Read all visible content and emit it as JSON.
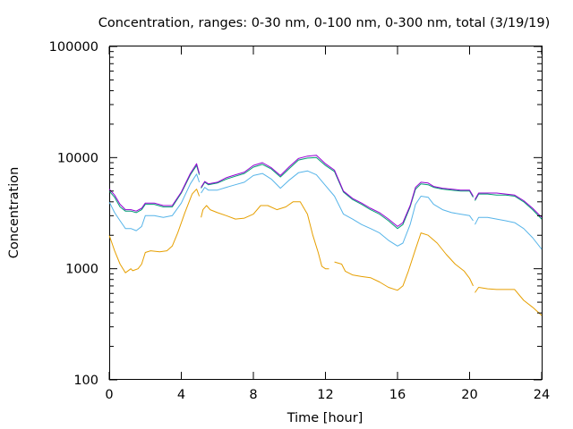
{
  "chart_data": {
    "type": "line",
    "title": "Concentration, ranges: 0-30 nm, 0-100 nm, 0-300 nm, total (3/19/19)",
    "xlabel": "Time [hour]",
    "ylabel": "Concentration",
    "xlim": [
      0,
      24
    ],
    "ylim": [
      100,
      100000
    ],
    "yscale": "log",
    "grid": false,
    "xticks": [
      0,
      4,
      8,
      12,
      16,
      20,
      24
    ],
    "xtick_labels": [
      "0",
      "4",
      "8",
      "12",
      "16",
      "20",
      "24"
    ],
    "yticks": [
      100,
      1000,
      10000,
      100000
    ],
    "ytick_labels": [
      "100",
      "1000",
      "10000",
      "100000"
    ],
    "series": [
      {
        "color": "#e69f00",
        "segments": [
          [
            [
              0,
              2000
            ],
            [
              0.3,
              1450
            ],
            [
              0.6,
              1100
            ],
            [
              0.9,
              920
            ],
            [
              1.2,
              1000
            ],
            [
              1.3,
              960
            ],
            [
              1.6,
              1000
            ],
            [
              1.8,
              1100
            ],
            [
              2.0,
              1400
            ],
            [
              2.3,
              1450
            ],
            [
              2.8,
              1420
            ],
            [
              3.2,
              1450
            ],
            [
              3.5,
              1600
            ],
            [
              3.8,
              2100
            ],
            [
              4.2,
              3200
            ],
            [
              4.6,
              4700
            ],
            [
              4.85,
              5200
            ],
            [
              5.0,
              4500
            ]
          ],
          [
            [
              5.1,
              2900
            ],
            [
              5.2,
              3400
            ],
            [
              5.4,
              3700
            ],
            [
              5.6,
              3400
            ],
            [
              6.0,
              3200
            ],
            [
              6.5,
              3000
            ],
            [
              7.0,
              2800
            ],
            [
              7.5,
              2850
            ],
            [
              8.0,
              3100
            ],
            [
              8.4,
              3700
            ],
            [
              8.8,
              3700
            ],
            [
              9.3,
              3400
            ],
            [
              9.8,
              3600
            ],
            [
              10.2,
              4000
            ],
            [
              10.6,
              4000
            ],
            [
              11.0,
              3100
            ],
            [
              11.3,
              2000
            ],
            [
              11.6,
              1400
            ],
            [
              11.8,
              1050
            ],
            [
              12.0,
              1000
            ],
            [
              12.2,
              1000
            ]
          ],
          [
            [
              12.5,
              1150
            ],
            [
              12.9,
              1100
            ],
            [
              13.1,
              950
            ],
            [
              13.5,
              880
            ],
            [
              14.0,
              850
            ],
            [
              14.5,
              830
            ],
            [
              15.0,
              760
            ],
            [
              15.5,
              680
            ],
            [
              16.0,
              640
            ],
            [
              16.3,
              700
            ],
            [
              16.6,
              950
            ],
            [
              17.0,
              1500
            ],
            [
              17.3,
              2100
            ],
            [
              17.7,
              2000
            ],
            [
              18.2,
              1700
            ],
            [
              18.7,
              1350
            ],
            [
              19.2,
              1100
            ],
            [
              19.7,
              950
            ],
            [
              20.0,
              820
            ],
            [
              20.2,
              700
            ]
          ],
          [
            [
              20.3,
              610
            ],
            [
              20.5,
              680
            ],
            [
              21.0,
              660
            ],
            [
              21.5,
              650
            ],
            [
              22.0,
              650
            ],
            [
              22.5,
              650
            ],
            [
              23.0,
              520
            ],
            [
              23.5,
              450
            ],
            [
              24.0,
              380
            ]
          ]
        ]
      },
      {
        "color": "#56b4e9",
        "segments": [
          [
            [
              0,
              4000
            ],
            [
              0.3,
              3200
            ],
            [
              0.6,
              2700
            ],
            [
              0.9,
              2300
            ],
            [
              1.2,
              2300
            ],
            [
              1.5,
              2200
            ],
            [
              1.8,
              2400
            ],
            [
              2.0,
              3000
            ],
            [
              2.5,
              3000
            ],
            [
              3.0,
              2900
            ],
            [
              3.5,
              3000
            ],
            [
              4.0,
              3900
            ],
            [
              4.5,
              5800
            ],
            [
              4.85,
              7100
            ],
            [
              5.0,
              6000
            ]
          ],
          [
            [
              5.1,
              4800
            ],
            [
              5.3,
              5400
            ],
            [
              5.5,
              5100
            ],
            [
              6.0,
              5100
            ],
            [
              6.5,
              5400
            ],
            [
              7.0,
              5700
            ],
            [
              7.5,
              6000
            ],
            [
              8.0,
              6900
            ],
            [
              8.5,
              7200
            ],
            [
              9.0,
              6400
            ],
            [
              9.5,
              5300
            ],
            [
              10.0,
              6300
            ],
            [
              10.5,
              7300
            ],
            [
              11.0,
              7600
            ],
            [
              11.5,
              7000
            ],
            [
              12.0,
              5600
            ],
            [
              12.5,
              4500
            ],
            [
              13.0,
              3100
            ],
            [
              13.5,
              2800
            ],
            [
              14.0,
              2500
            ],
            [
              14.5,
              2300
            ],
            [
              15.0,
              2100
            ],
            [
              15.5,
              1800
            ],
            [
              16.0,
              1600
            ],
            [
              16.3,
              1700
            ],
            [
              16.7,
              2500
            ],
            [
              17.0,
              3800
            ],
            [
              17.3,
              4500
            ],
            [
              17.7,
              4400
            ],
            [
              18.0,
              3800
            ],
            [
              18.5,
              3400
            ],
            [
              19.0,
              3200
            ],
            [
              19.5,
              3100
            ],
            [
              20.0,
              3000
            ],
            [
              20.2,
              2700
            ]
          ],
          [
            [
              20.3,
              2500
            ],
            [
              20.5,
              2900
            ],
            [
              21.0,
              2900
            ],
            [
              21.5,
              2800
            ],
            [
              22.0,
              2700
            ],
            [
              22.5,
              2600
            ],
            [
              23.0,
              2300
            ],
            [
              23.5,
              1900
            ],
            [
              24.0,
              1500
            ]
          ]
        ]
      },
      {
        "color": "#009e73",
        "segments": [
          [
            [
              0,
              5000
            ],
            [
              0.3,
              4400
            ],
            [
              0.6,
              3600
            ],
            [
              0.9,
              3300
            ],
            [
              1.2,
              3300
            ],
            [
              1.5,
              3200
            ],
            [
              1.8,
              3400
            ],
            [
              2.0,
              3800
            ],
            [
              2.5,
              3800
            ],
            [
              3.0,
              3600
            ],
            [
              3.5,
              3600
            ],
            [
              4.0,
              4800
            ],
            [
              4.5,
              7000
            ],
            [
              4.85,
              8500
            ],
            [
              5.0,
              7000
            ]
          ],
          [
            [
              5.1,
              5300
            ],
            [
              5.3,
              6000
            ],
            [
              5.5,
              5700
            ],
            [
              6.0,
              5900
            ],
            [
              6.5,
              6400
            ],
            [
              7.0,
              6800
            ],
            [
              7.5,
              7200
            ],
            [
              8.0,
              8200
            ],
            [
              8.5,
              8700
            ],
            [
              9.0,
              7900
            ],
            [
              9.5,
              6700
            ],
            [
              10.0,
              8000
            ],
            [
              10.5,
              9500
            ],
            [
              11.0,
              9900
            ],
            [
              11.5,
              10000
            ],
            [
              12.0,
              8500
            ],
            [
              12.5,
              7500
            ],
            [
              13.0,
              4900
            ],
            [
              13.5,
              4200
            ],
            [
              14.0,
              3800
            ],
            [
              14.5,
              3400
            ],
            [
              15.0,
              3100
            ],
            [
              15.5,
              2700
            ],
            [
              16.0,
              2300
            ],
            [
              16.3,
              2500
            ],
            [
              16.7,
              3600
            ],
            [
              17.0,
              5200
            ],
            [
              17.3,
              5800
            ],
            [
              17.7,
              5700
            ],
            [
              18.0,
              5400
            ],
            [
              18.5,
              5200
            ],
            [
              19.0,
              5100
            ],
            [
              19.5,
              5000
            ],
            [
              20.0,
              5000
            ],
            [
              20.2,
              4400
            ]
          ],
          [
            [
              20.3,
              4100
            ],
            [
              20.5,
              4700
            ],
            [
              21.0,
              4700
            ],
            [
              21.5,
              4600
            ],
            [
              22.0,
              4600
            ],
            [
              22.5,
              4500
            ],
            [
              23.0,
              4000
            ],
            [
              23.5,
              3400
            ],
            [
              24.0,
              2800
            ]
          ]
        ]
      },
      {
        "color": "#9400d3",
        "segments": [
          [
            [
              0,
              5200
            ],
            [
              0.3,
              4600
            ],
            [
              0.6,
              3800
            ],
            [
              0.9,
              3400
            ],
            [
              1.2,
              3400
            ],
            [
              1.5,
              3300
            ],
            [
              1.8,
              3500
            ],
            [
              2.0,
              3900
            ],
            [
              2.5,
              3900
            ],
            [
              3.0,
              3700
            ],
            [
              3.5,
              3700
            ],
            [
              4.0,
              4900
            ],
            [
              4.5,
              7200
            ],
            [
              4.85,
              8800
            ],
            [
              5.0,
              7200
            ]
          ],
          [
            [
              5.1,
              5400
            ],
            [
              5.3,
              6100
            ],
            [
              5.5,
              5800
            ],
            [
              6.0,
              6000
            ],
            [
              6.5,
              6600
            ],
            [
              7.0,
              7000
            ],
            [
              7.5,
              7400
            ],
            [
              8.0,
              8500
            ],
            [
              8.5,
              9000
            ],
            [
              9.0,
              8100
            ],
            [
              9.5,
              6900
            ],
            [
              10.0,
              8300
            ],
            [
              10.5,
              9800
            ],
            [
              11.0,
              10300
            ],
            [
              11.5,
              10500
            ],
            [
              12.0,
              8800
            ],
            [
              12.5,
              7700
            ],
            [
              13.0,
              5000
            ],
            [
              13.5,
              4300
            ],
            [
              14.0,
              3900
            ],
            [
              14.5,
              3500
            ],
            [
              15.0,
              3200
            ],
            [
              15.5,
              2800
            ],
            [
              16.0,
              2400
            ],
            [
              16.3,
              2600
            ],
            [
              16.7,
              3700
            ],
            [
              17.0,
              5400
            ],
            [
              17.3,
              6000
            ],
            [
              17.7,
              5900
            ],
            [
              18.0,
              5500
            ],
            [
              18.5,
              5300
            ],
            [
              19.0,
              5200
            ],
            [
              19.5,
              5100
            ],
            [
              20.0,
              5100
            ],
            [
              20.2,
              4500
            ]
          ],
          [
            [
              20.3,
              4200
            ],
            [
              20.5,
              4800
            ],
            [
              21.0,
              4800
            ],
            [
              21.5,
              4800
            ],
            [
              22.0,
              4700
            ],
            [
              22.5,
              4600
            ],
            [
              23.0,
              4100
            ],
            [
              23.5,
              3500
            ],
            [
              24.0,
              2900
            ]
          ]
        ]
      }
    ]
  }
}
